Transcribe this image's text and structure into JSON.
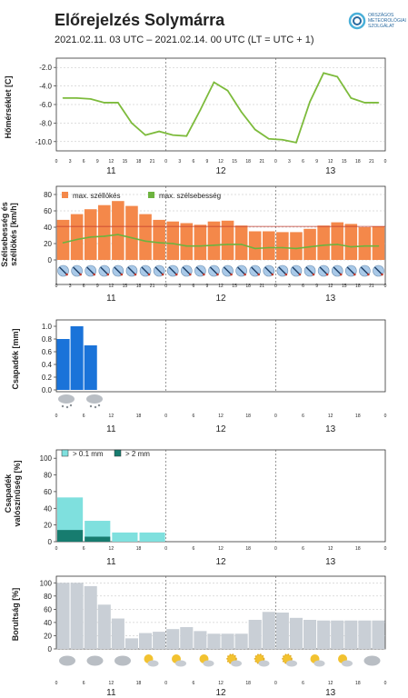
{
  "header": {
    "title": "Előrejelzés Solymárra",
    "subtitle": "2021.02.11. 03 UTC  –  2021.02.14. 00 UTC  (LT = UTC + 1)",
    "logo_text": [
      "ORSZÁGOS",
      "METEOROLÓGIAI",
      "SZOLGÁLAT"
    ]
  },
  "colors": {
    "temp_line": "#7dbb3c",
    "gust_bar": "#f4884a",
    "wind_line": "#6db33f",
    "precip_bar": "#1a73d9",
    "prob_light": "#7fe0de",
    "prob_dark": "#177c6f",
    "cloud_bar": "#c9cfd6",
    "red_line": "#c0392b"
  },
  "chart_data": [
    {
      "id": "temperature",
      "type": "line",
      "ylabel": "Hőmérséklet [C]",
      "ylim": [
        -11,
        -1
      ],
      "yticks": [
        -10,
        -8,
        -6,
        -4,
        -2
      ],
      "grid": true,
      "x_hours": [
        3,
        6,
        9,
        12,
        15,
        18,
        21,
        24,
        27,
        30,
        33,
        36,
        39,
        42,
        45,
        48,
        51,
        54,
        57,
        60,
        63,
        66,
        69,
        72
      ],
      "tick_labels": [
        "0",
        "3",
        "6",
        "9",
        "12",
        "15",
        "18",
        "21",
        "0",
        "3",
        "6",
        "9",
        "12",
        "15",
        "18",
        "21",
        "0",
        "3",
        "6",
        "9",
        "12",
        "15",
        "18",
        "21",
        "0"
      ],
      "day_labels": [
        "11",
        "12",
        "13"
      ],
      "values": [
        -5.3,
        -5.3,
        -5.4,
        -5.8,
        -5.8,
        -8.0,
        -9.3,
        -8.9,
        -9.3,
        -9.4,
        -6.6,
        -3.6,
        -4.5,
        -6.8,
        -8.7,
        -9.7,
        -9.8,
        -10.1,
        -5.7,
        -2.6,
        -3.0,
        -5.3,
        -5.8,
        -5.8
      ]
    },
    {
      "id": "wind",
      "type": "bar",
      "ylabel": "Szélsebesség és széllökés [km/h]",
      "ylim": [
        0,
        90
      ],
      "yticks": [
        0,
        20,
        40,
        60,
        80
      ],
      "grid": true,
      "legend": [
        "max. széllökés",
        "max. szélsebesség"
      ],
      "x_hours": [
        3,
        6,
        9,
        12,
        15,
        18,
        21,
        24,
        27,
        30,
        33,
        36,
        39,
        42,
        45,
        48,
        51,
        54,
        57,
        60,
        63,
        66,
        69,
        72
      ],
      "tick_labels": [
        "0",
        "3",
        "6",
        "9",
        "12",
        "15",
        "18",
        "21",
        "0",
        "3",
        "6",
        "9",
        "12",
        "15",
        "18",
        "21",
        "0",
        "3",
        "6",
        "9",
        "12",
        "15",
        "18",
        "21",
        "0"
      ],
      "day_labels": [
        "11",
        "12",
        "13"
      ],
      "gust": [
        49,
        56,
        62,
        67,
        72,
        66,
        56,
        49,
        47,
        45,
        43,
        47,
        48,
        42,
        35,
        35,
        34,
        34,
        38,
        42,
        46,
        44,
        40,
        41
      ],
      "speed": [
        21,
        25,
        28,
        29,
        31,
        27,
        23,
        21,
        20,
        17,
        17,
        18,
        19,
        19,
        14,
        15,
        15,
        14,
        16,
        18,
        19,
        16,
        17,
        17
      ],
      "reference_line": 41
    },
    {
      "id": "precipitation",
      "type": "bar",
      "ylabel": "Csapadék [mm]",
      "ylim": [
        0,
        1.1
      ],
      "yticks": [
        0.0,
        0.2,
        0.4,
        0.6,
        0.8,
        1.0
      ],
      "x_hours": [
        3,
        6,
        9
      ],
      "tick_labels": [
        "0",
        "6",
        "12",
        "18",
        "0",
        "6",
        "12",
        "18",
        "0",
        "6",
        "12",
        "18",
        "0"
      ],
      "day_labels": [
        "11",
        "12",
        "13"
      ],
      "values": [
        0.8,
        1.0,
        0.7
      ]
    },
    {
      "id": "precip_probability",
      "type": "bar",
      "ylabel": "Csapadék valószínűség [%]",
      "ylim": [
        0,
        110
      ],
      "yticks": [
        0,
        20,
        40,
        60,
        80,
        100
      ],
      "legend": [
        "> 0.1 mm",
        "> 2 mm"
      ],
      "x_hours": [
        3,
        9,
        15,
        21
      ],
      "tick_labels": [
        "0",
        "6",
        "12",
        "18",
        "0",
        "6",
        "12",
        "18",
        "0",
        "6",
        "12",
        "18",
        "0"
      ],
      "day_labels": [
        "11",
        "12",
        "13"
      ],
      "gt01": [
        53,
        25,
        11,
        11
      ],
      "gt2": [
        14,
        6,
        0,
        0
      ]
    },
    {
      "id": "cloudiness",
      "type": "bar",
      "ylabel": "Borultság [%]",
      "ylim": [
        0,
        110
      ],
      "yticks": [
        0,
        20,
        40,
        60,
        80,
        100
      ],
      "grid": true,
      "x_hours": [
        3,
        6,
        9,
        12,
        15,
        18,
        21,
        24,
        27,
        30,
        33,
        36,
        39,
        42,
        45,
        48,
        51,
        54,
        57,
        60,
        63,
        66,
        69,
        72
      ],
      "tick_labels": [
        "0",
        "6",
        "12",
        "18",
        "0",
        "6",
        "12",
        "18",
        "0",
        "6",
        "12",
        "18",
        "0"
      ],
      "day_labels": [
        "11",
        "12",
        "13"
      ],
      "values": [
        100,
        100,
        95,
        67,
        46,
        16,
        24,
        26,
        30,
        33,
        27,
        23,
        23,
        23,
        44,
        56,
        55,
        47,
        44,
        43,
        43,
        43,
        43,
        43
      ]
    }
  ]
}
